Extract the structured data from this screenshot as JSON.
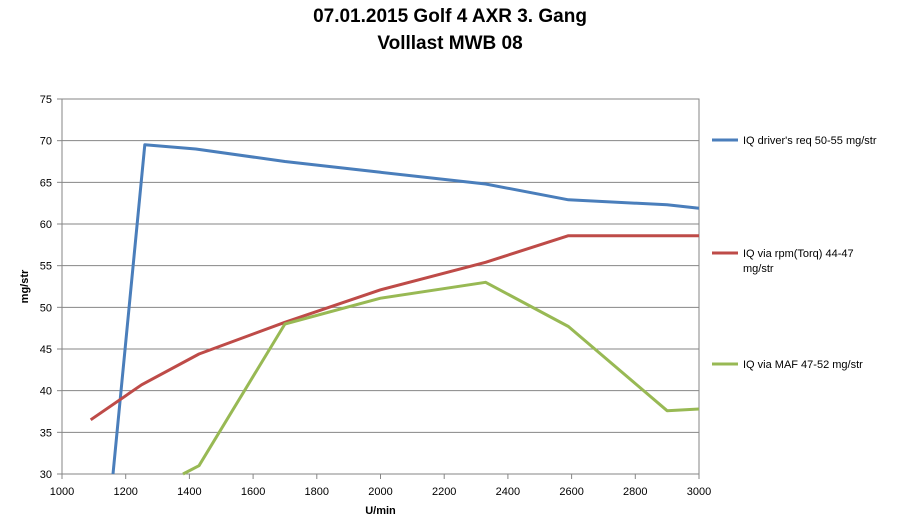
{
  "chart_data": {
    "type": "line",
    "title": "07.01.2015  Golf 4 AXR 3. Gang",
    "subtitle": "Volllast MWB 08",
    "xlabel": "U/min",
    "ylabel": "mg/str",
    "xlim": [
      1000,
      3000
    ],
    "ylim": [
      30,
      75
    ],
    "xticks": [
      1000,
      1200,
      1400,
      1600,
      1800,
      2000,
      2200,
      2400,
      2600,
      2800,
      3000
    ],
    "yticks": [
      30,
      35,
      40,
      45,
      50,
      55,
      60,
      65,
      70,
      75
    ],
    "grid": "horizontal",
    "legend_position": "right",
    "series": [
      {
        "name": "IQ driver's req 50-55  mg/str",
        "color": "#4a7ebb",
        "legend_lines": [
          "IQ driver's req 50-55  mg/str"
        ],
        "points": [
          [
            1160,
            30
          ],
          [
            1260,
            69.5
          ],
          [
            1420,
            69
          ],
          [
            1700,
            67.5
          ],
          [
            2000,
            66.2
          ],
          [
            2330,
            64.8
          ],
          [
            2590,
            62.9
          ],
          [
            2900,
            62.3
          ],
          [
            3000,
            61.9
          ]
        ]
      },
      {
        "name": "IQ via rpm(Torq) 44-47 mg/str",
        "color": "#be4b48",
        "legend_lines": [
          "IQ via rpm(Torq) 44-47",
          "mg/str"
        ],
        "points": [
          [
            1090,
            36.5
          ],
          [
            1250,
            40.7
          ],
          [
            1430,
            44.4
          ],
          [
            1700,
            48.2
          ],
          [
            2000,
            52.1
          ],
          [
            2330,
            55.4
          ],
          [
            2590,
            58.6
          ],
          [
            3000,
            58.6
          ]
        ]
      },
      {
        "name": "IQ via MAF 47-52  mg/str",
        "color": "#98b954",
        "legend_lines": [
          "IQ via MAF 47-52  mg/str"
        ],
        "points": [
          [
            1380,
            30
          ],
          [
            1430,
            31
          ],
          [
            1700,
            48
          ],
          [
            2000,
            51.1
          ],
          [
            2330,
            53
          ],
          [
            2590,
            47.7
          ],
          [
            2900,
            37.6
          ],
          [
            3000,
            37.8
          ]
        ]
      }
    ]
  }
}
